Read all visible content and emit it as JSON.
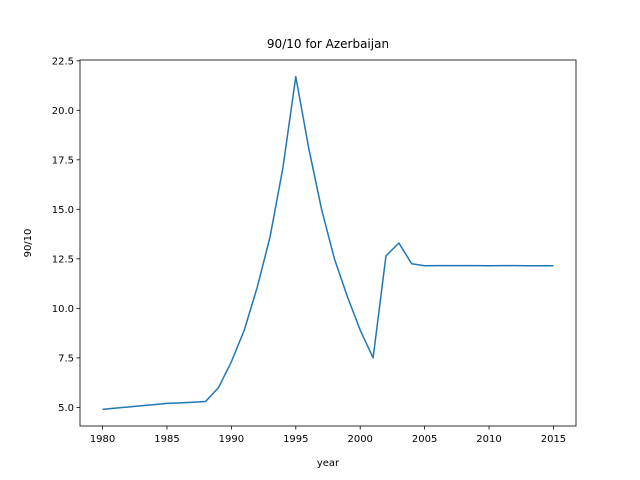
{
  "chart_data": {
    "type": "line",
    "title": "90/10 for Azerbaijan",
    "xlabel": "year",
    "ylabel": "90/10",
    "x": [
      1980,
      1981,
      1982,
      1983,
      1984,
      1985,
      1986,
      1987,
      1988,
      1989,
      1990,
      1991,
      1992,
      1993,
      1994,
      1995,
      1996,
      1997,
      1998,
      1999,
      2000,
      2001,
      2002,
      2003,
      2004,
      2005,
      2006,
      2007,
      2008,
      2009,
      2010,
      2011,
      2012,
      2013,
      2014,
      2015
    ],
    "series": [
      {
        "name": "90/10",
        "color": "#1f77b4",
        "values": [
          4.9,
          4.96,
          5.02,
          5.08,
          5.14,
          5.2,
          5.23,
          5.26,
          5.3,
          6.0,
          7.3,
          8.9,
          11.05,
          13.6,
          17.1,
          21.7,
          18.1,
          15.0,
          12.5,
          10.6,
          8.9,
          7.5,
          12.65,
          13.3,
          12.25,
          12.15,
          12.16,
          12.16,
          12.16,
          12.16,
          12.15,
          12.16,
          12.16,
          12.15,
          12.15,
          12.15
        ]
      }
    ],
    "xlim": [
      1978.25,
      2016.75
    ],
    "ylim": [
      4.06,
      22.54
    ],
    "xticks": [
      1980,
      1985,
      1990,
      1995,
      2000,
      2005,
      2010,
      2015
    ],
    "yticks": [
      {
        "value": 5,
        "label": "5.0"
      },
      7.5,
      {
        "value": 10,
        "label": "10.0"
      },
      12.5,
      {
        "value": 15,
        "label": "15.0"
      },
      17.5,
      {
        "value": 20,
        "label": "20.0"
      },
      22.5
    ]
  }
}
